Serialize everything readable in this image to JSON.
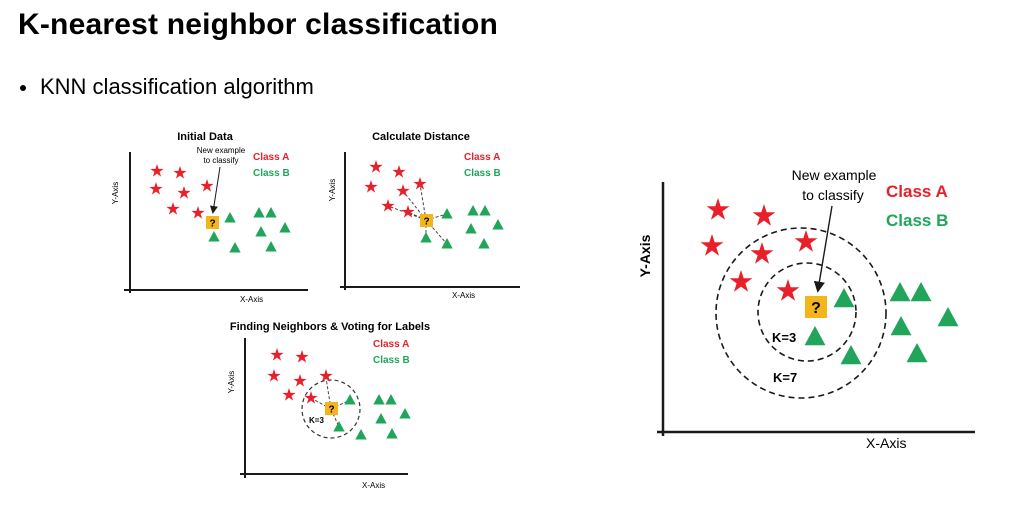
{
  "slide": {
    "title": "K-nearest neighbor classification",
    "bullet": "KNN classification algorithm"
  },
  "colors": {
    "class_a": "#e8202a",
    "class_b": "#21a55a",
    "query": "#f3b51a",
    "axis": "#1a1a1a"
  },
  "icons": {
    "class_a": "star-icon",
    "class_b": "triangle-icon",
    "query": "question-square-icon"
  },
  "panel_initial": {
    "title": "Initial Data",
    "annotation_line1": "New example",
    "annotation_line2": "to classify",
    "legend_a": "Class A",
    "legend_b": "Class B",
    "xlabel": "X-Axis",
    "ylabel": "Y-Axis",
    "query": "?"
  },
  "panel_distance": {
    "title": "Calculate Distance",
    "legend_a": "Class A",
    "legend_b": "Class B",
    "xlabel": "X-Axis",
    "ylabel": "Y-Axis",
    "query": "?"
  },
  "panel_neighbors": {
    "title": "Finding Neighbors & Voting for Labels",
    "legend_a": "Class A",
    "legend_b": "Class B",
    "xlabel": "X-Axis",
    "ylabel": "Y-Axis",
    "k_label": "K=3",
    "query": "?"
  },
  "panel_large": {
    "annotation_line1": "New example",
    "annotation_line2": "to classify",
    "legend_a": "Class A",
    "legend_b": "Class B",
    "xlabel": "X-Axis",
    "ylabel": "Y-Axis",
    "k_inner": "K=3",
    "k_outer": "K=7",
    "query": "?"
  }
}
